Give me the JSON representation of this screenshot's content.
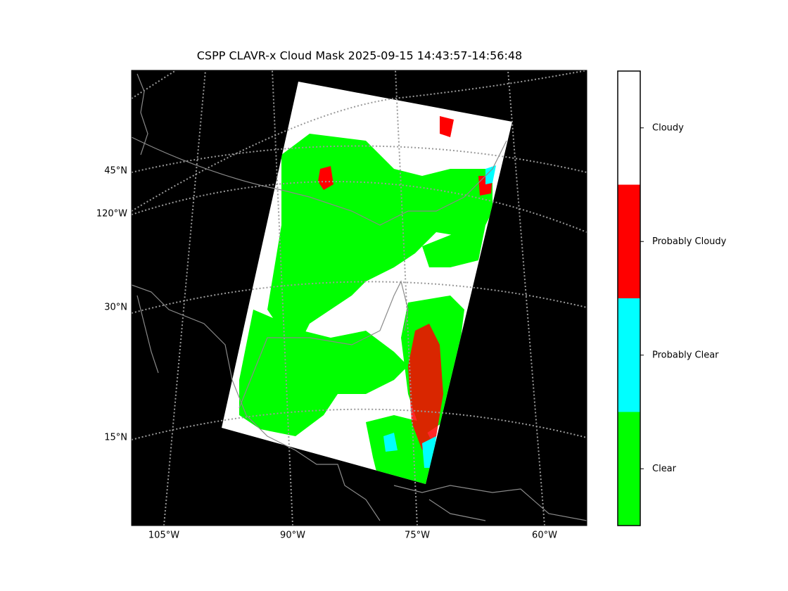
{
  "title": "CSPP CLAVR-x Cloud Mask 2025-09-15 14:43:57-14:56:48",
  "latitude_labels": [
    "45°N",
    "120°W",
    "30°N",
    "15°N"
  ],
  "longitude_labels": [
    "105°W",
    "90°W",
    "75°W",
    "60°W"
  ],
  "colorbar": [
    {
      "name": "Clear",
      "color": "#00ff00"
    },
    {
      "name": "Probably Clear",
      "color": "#00ffff"
    },
    {
      "name": "Probably Cloudy",
      "color": "#ff0000"
    },
    {
      "name": "Cloudy",
      "color": "#ffffff"
    }
  ]
}
